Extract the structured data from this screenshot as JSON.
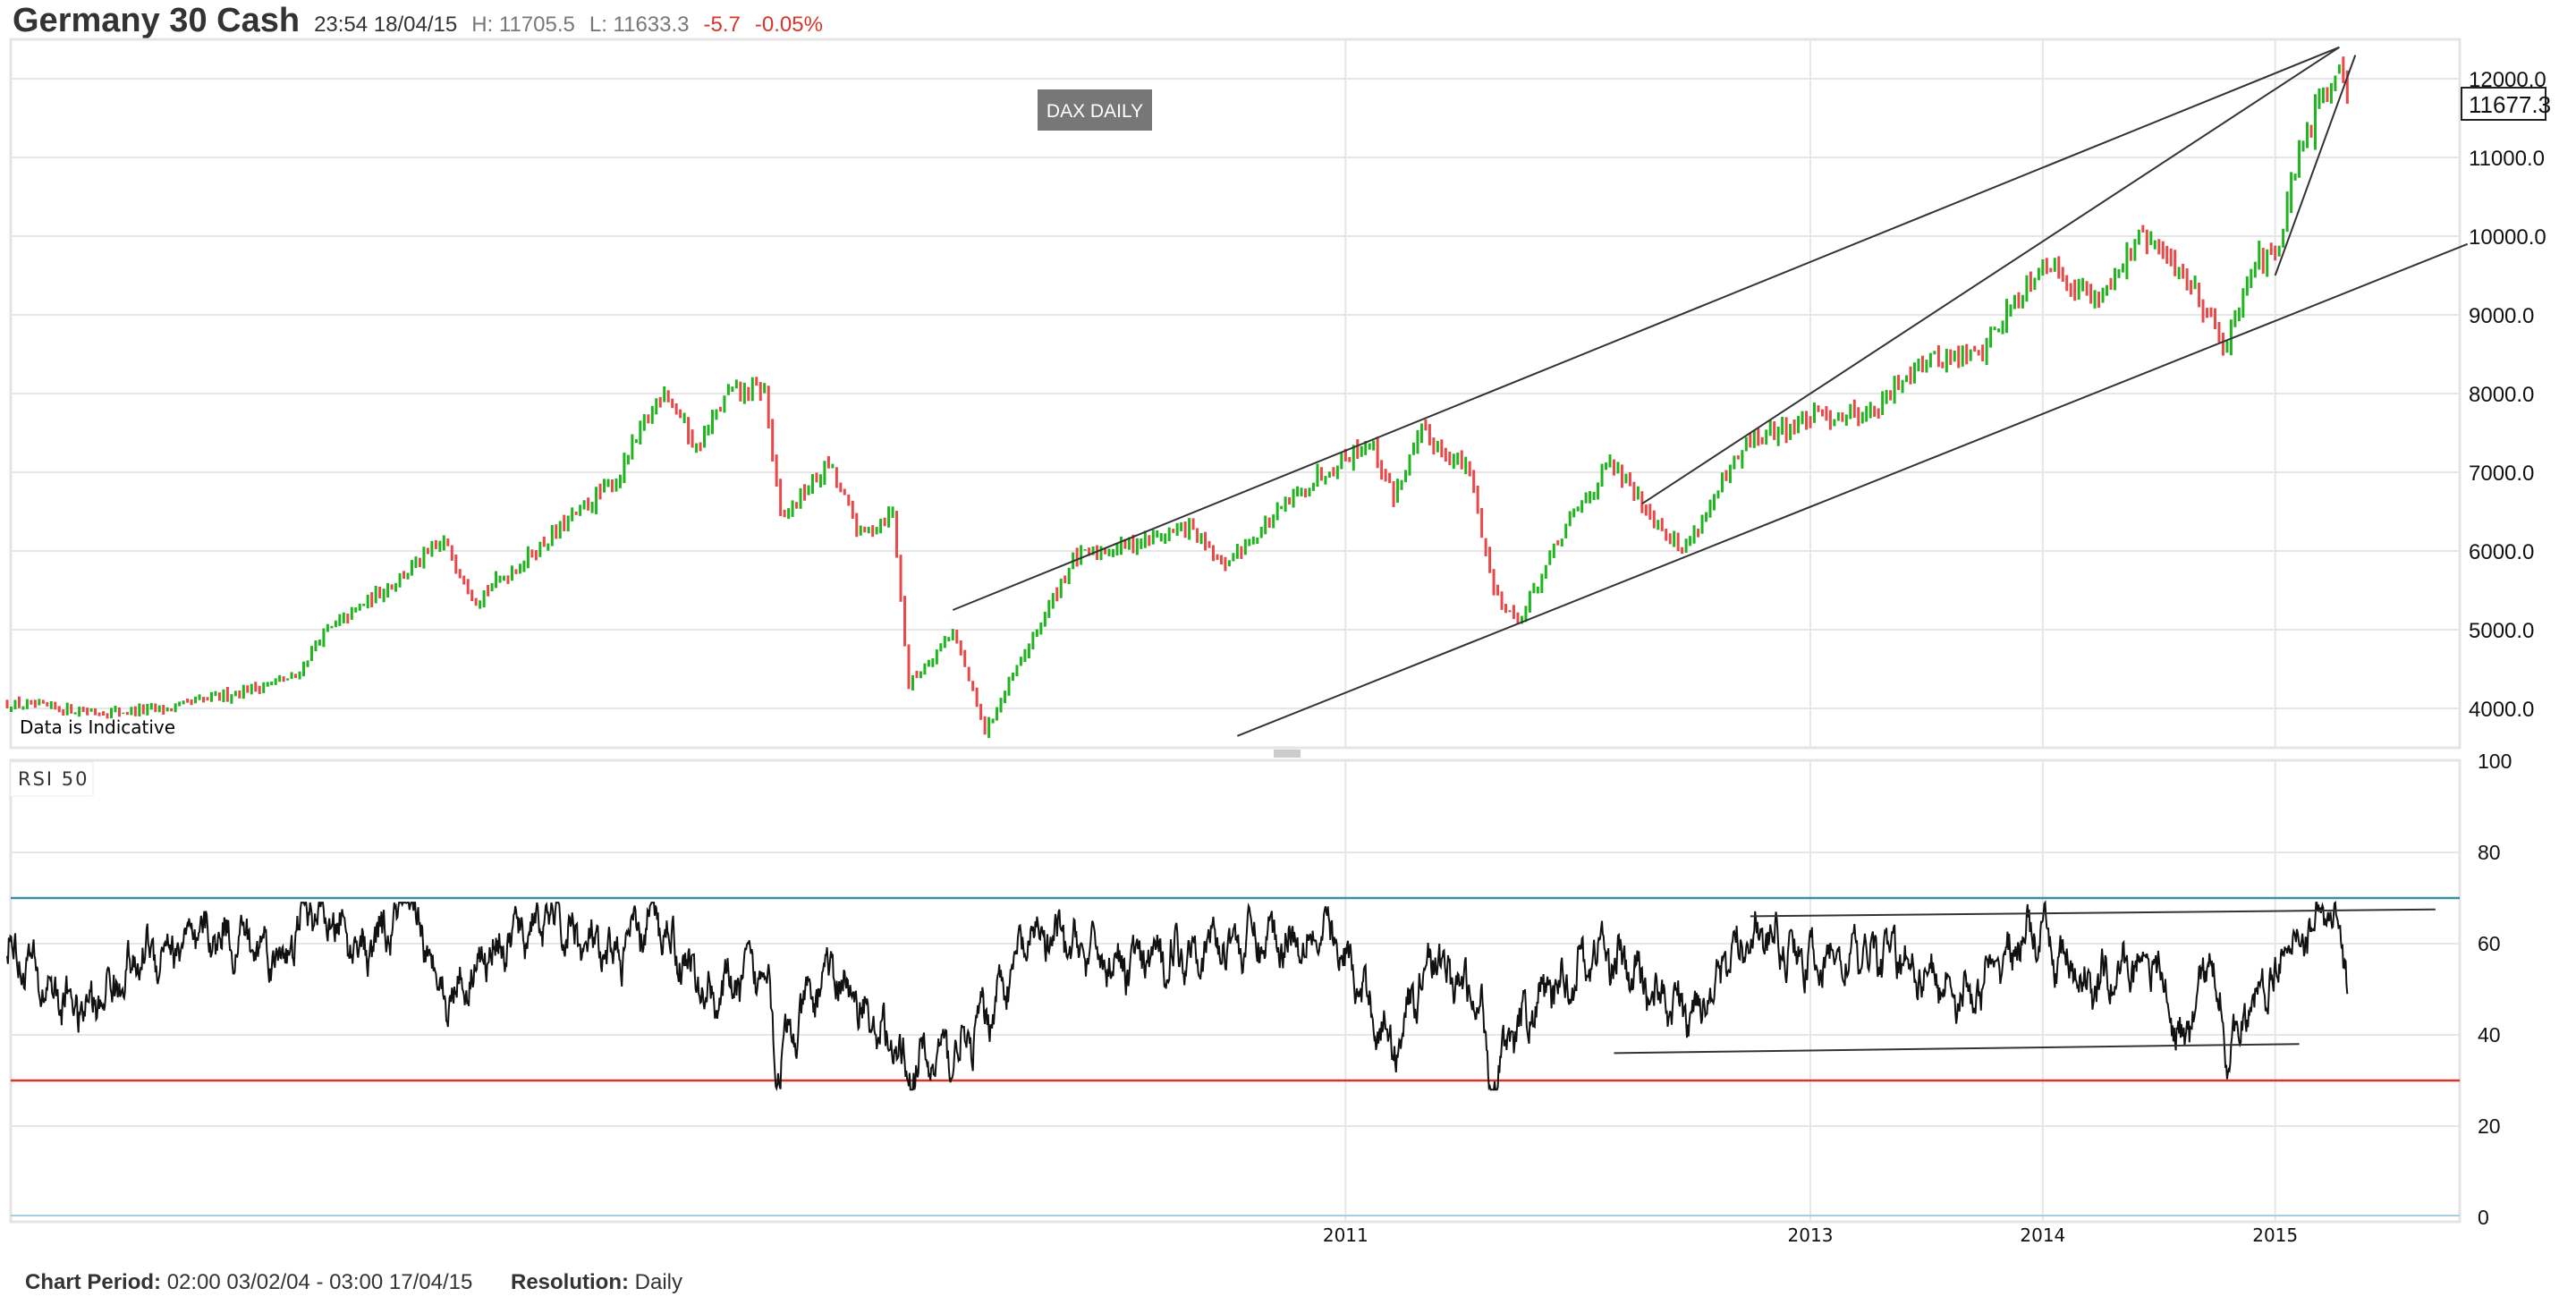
{
  "header": {
    "title": "Germany 30 Cash",
    "datetime": "23:54 18/04/15",
    "high": "H: 11705.5",
    "low": "L: 11633.3",
    "change": "-5.7",
    "change_pct": "-0.05%"
  },
  "annotations": {
    "box_label": "DAX DAILY",
    "disclaimer": "Data is Indicative",
    "rsi_label": "RSI 50",
    "last_price": "11677.3"
  },
  "footer": {
    "period_label": "Chart Period:",
    "period_value": "02:00 03/02/04 - 03:00 17/04/15",
    "resolution_label": "Resolution:",
    "resolution_value": "Daily"
  },
  "colors": {
    "up": "#1fb51f",
    "down": "#e94848",
    "overbought": "#3a8fa8",
    "oversold": "#d9342b",
    "line": "#222222",
    "grid": "#e6e6e6"
  },
  "chart_data": [
    {
      "type": "bar",
      "title": "Germany 30 Cash (DAX) price",
      "x_unit": "week index from chart start",
      "y_ticks": [
        "4000.0",
        "5000.0",
        "6000.0",
        "7000.0",
        "8000.0",
        "9000.0",
        "10000.0",
        "11000.0",
        "12000.0"
      ],
      "ylim": [
        3500,
        12400
      ],
      "x_tick_labels": [
        {
          "label": "2011",
          "t": 334
        },
        {
          "label": "2013",
          "t": 450
        },
        {
          "label": "2014",
          "t": 508
        },
        {
          "label": "2015",
          "t": 566
        }
      ],
      "price_keypoints": [
        [
          0,
          4050
        ],
        [
          25,
          3950
        ],
        [
          41,
          4000
        ],
        [
          72,
          4400
        ],
        [
          78,
          4900
        ],
        [
          109,
          6100
        ],
        [
          117,
          5400
        ],
        [
          127,
          5800
        ],
        [
          152,
          6900
        ],
        [
          164,
          8100
        ],
        [
          172,
          7300
        ],
        [
          180,
          8000
        ],
        [
          189,
          8050
        ],
        [
          193,
          6400
        ],
        [
          205,
          7100
        ],
        [
          213,
          6200
        ],
        [
          221,
          6500
        ],
        [
          225,
          4300
        ],
        [
          236,
          5000
        ],
        [
          244,
          3700
        ],
        [
          254,
          4700
        ],
        [
          266,
          5900
        ],
        [
          295,
          6300
        ],
        [
          303,
          5800
        ],
        [
          328,
          7000
        ],
        [
          340,
          7400
        ],
        [
          346,
          6700
        ],
        [
          353,
          7500
        ],
        [
          365,
          7000
        ],
        [
          371,
          5500
        ],
        [
          377,
          5100
        ],
        [
          390,
          6400
        ],
        [
          400,
          7100
        ],
        [
          410,
          6500
        ],
        [
          418,
          6000
        ],
        [
          430,
          7000
        ],
        [
          435,
          7400
        ],
        [
          451,
          7700
        ],
        [
          467,
          7800
        ],
        [
          476,
          8400
        ],
        [
          492,
          8500
        ],
        [
          508,
          9700
        ],
        [
          521,
          9200
        ],
        [
          533,
          10000
        ],
        [
          545,
          9400
        ],
        [
          554,
          8600
        ],
        [
          560,
          9700
        ],
        [
          566,
          9700
        ],
        [
          572,
          11000
        ],
        [
          582,
          12300
        ],
        [
          584,
          11700
        ]
      ],
      "trendlines": [
        {
          "from": [
            236,
            5250
          ],
          "to": [
            582,
            12400
          ]
        },
        {
          "from": [
            307,
            3650
          ],
          "to": [
            614,
            9900
          ]
        },
        {
          "from": [
            408,
            6600
          ],
          "to": [
            582,
            12400
          ]
        },
        {
          "from": [
            566,
            9500
          ],
          "to": [
            586,
            12300
          ]
        }
      ]
    },
    {
      "type": "line",
      "title": "RSI 50",
      "ylim": [
        0,
        100
      ],
      "y_ticks": [
        "0",
        "20",
        "40",
        "60",
        "80",
        "100"
      ],
      "levels": {
        "overbought": 70,
        "oversold": 30
      },
      "rsi_keypoints": [
        [
          0,
          60
        ],
        [
          10,
          50
        ],
        [
          20,
          45
        ],
        [
          35,
          58
        ],
        [
          55,
          62
        ],
        [
          70,
          57
        ],
        [
          75,
          68
        ],
        [
          90,
          58
        ],
        [
          100,
          68
        ],
        [
          110,
          48
        ],
        [
          120,
          58
        ],
        [
          135,
          66
        ],
        [
          150,
          56
        ],
        [
          162,
          66
        ],
        [
          175,
          48
        ],
        [
          190,
          55
        ],
        [
          192,
          33
        ],
        [
          205,
          55
        ],
        [
          215,
          44
        ],
        [
          225,
          32
        ],
        [
          240,
          38
        ],
        [
          256,
          62
        ],
        [
          280,
          55
        ],
        [
          300,
          60
        ],
        [
          330,
          62
        ],
        [
          346,
          37
        ],
        [
          355,
          58
        ],
        [
          368,
          45
        ],
        [
          370,
          31
        ],
        [
          380,
          45
        ],
        [
          398,
          59
        ],
        [
          410,
          50
        ],
        [
          420,
          44
        ],
        [
          435,
          63
        ],
        [
          450,
          56
        ],
        [
          470,
          58
        ],
        [
          490,
          48
        ],
        [
          505,
          63
        ],
        [
          520,
          50
        ],
        [
          535,
          58
        ],
        [
          543,
          37
        ],
        [
          550,
          58
        ],
        [
          554,
          37
        ],
        [
          565,
          53
        ],
        [
          578,
          68
        ],
        [
          584,
          55
        ]
      ],
      "trendlines": [
        {
          "from": [
            435,
            66
          ],
          "to": [
            606,
            67.5
          ]
        },
        {
          "from": [
            401,
            36
          ],
          "to": [
            572,
            38
          ]
        }
      ]
    }
  ]
}
